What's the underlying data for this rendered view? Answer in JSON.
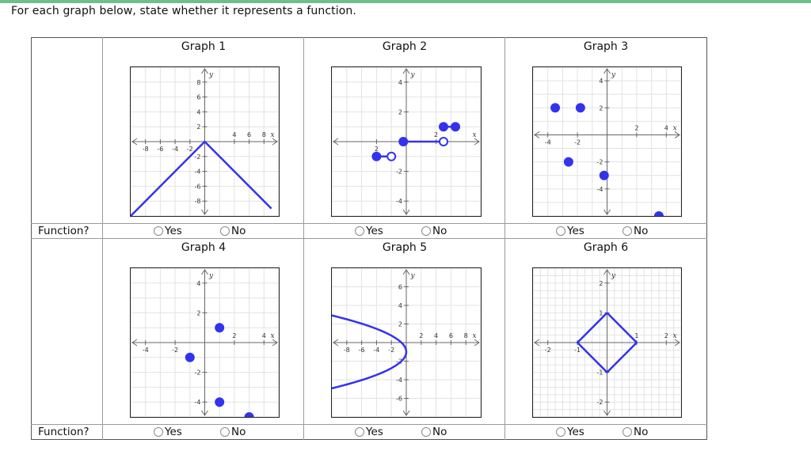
{
  "prompt": "For each graph below, state whether it represents a function.",
  "row_label": "Function?",
  "options": {
    "yes": "Yes",
    "no": "No"
  },
  "accent_color": "#3333ee",
  "graphs": [
    {
      "title": "Graph 1",
      "x_ticks": [
        "-8",
        "-6",
        "-4",
        "-2",
        "4",
        "6",
        "8"
      ],
      "y_ticks": [
        "8",
        "6",
        "4",
        "2",
        "-2",
        "-4",
        "-6",
        "-8"
      ]
    },
    {
      "title": "Graph 2",
      "x_ticks": [
        "2",
        "2"
      ],
      "y_ticks": [
        "4",
        "2",
        "-2",
        "-4"
      ]
    },
    {
      "title": "Graph 3",
      "x_ticks": [
        "-4",
        "-2",
        "2",
        "4"
      ],
      "y_ticks": [
        "4",
        "2",
        "-2",
        "-4"
      ]
    },
    {
      "title": "Graph 4",
      "x_ticks": [
        "-4",
        "-2",
        "2",
        "4"
      ],
      "y_ticks": [
        "4",
        "2",
        "-2",
        "-4"
      ]
    },
    {
      "title": "Graph 5",
      "x_ticks": [
        "-8",
        "-6",
        "-4",
        "-2",
        "2",
        "4",
        "6",
        "8"
      ],
      "y_ticks": [
        "6",
        "4",
        "2",
        "-2",
        "-4",
        "-6"
      ]
    },
    {
      "title": "Graph 6",
      "x_ticks": [
        "-2",
        "-1",
        "1",
        "2"
      ],
      "y_ticks": [
        "2",
        "1",
        "-1",
        "-2"
      ]
    }
  ],
  "axis_labels": {
    "x": "x",
    "y": "y"
  }
}
